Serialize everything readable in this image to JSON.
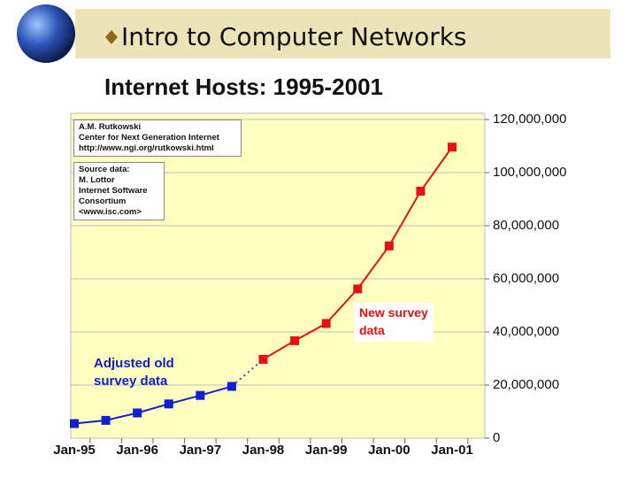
{
  "header": {
    "title": "Intro to Computer Networks"
  },
  "chart_data": {
    "type": "line",
    "title": "Internet Hosts: 1995-2001",
    "categories": [
      "Jan-95",
      null,
      "Jan-96",
      null,
      "Jan-97",
      null,
      "Jan-98",
      null,
      "Jan-99",
      null,
      "Jan-00",
      null,
      "Jan-01"
    ],
    "series": [
      {
        "name": "Adjusted old\nsurvey data",
        "color": "#1020d0",
        "values": [
          5500000,
          6700000,
          9500000,
          12900000,
          16100000,
          19500000,
          null,
          null,
          null,
          null,
          null,
          null,
          null
        ]
      },
      {
        "name": "New survey\ndata",
        "color": "#e81010",
        "values": [
          null,
          null,
          null,
          null,
          null,
          null,
          29700000,
          36700000,
          43200000,
          56200000,
          72400000,
          93000000,
          109600000
        ]
      }
    ],
    "ylim": [
      0,
      120000000
    ],
    "yticks": [
      0,
      {
        "value": 20000000,
        "label": "20,000,000"
      },
      {
        "value": 40000000,
        "label": "40,000,000"
      },
      {
        "value": 60000000,
        "label": "60,000,000"
      },
      {
        "value": 80000000,
        "label": "80,000,000"
      },
      {
        "value": 100000000,
        "label": "100,000,000"
      },
      {
        "value": 120000000,
        "label": "120,000,000"
      }
    ],
    "grid": true,
    "annotations": [
      "A.M. Rutkowski\nCenter for Next Generation Internet\nhttp://www.ngi.org/rutkowski.html",
      "Source data:\nM. Lottor\nInternet Software\nConsortium\n<www.isc.com>"
    ]
  }
}
